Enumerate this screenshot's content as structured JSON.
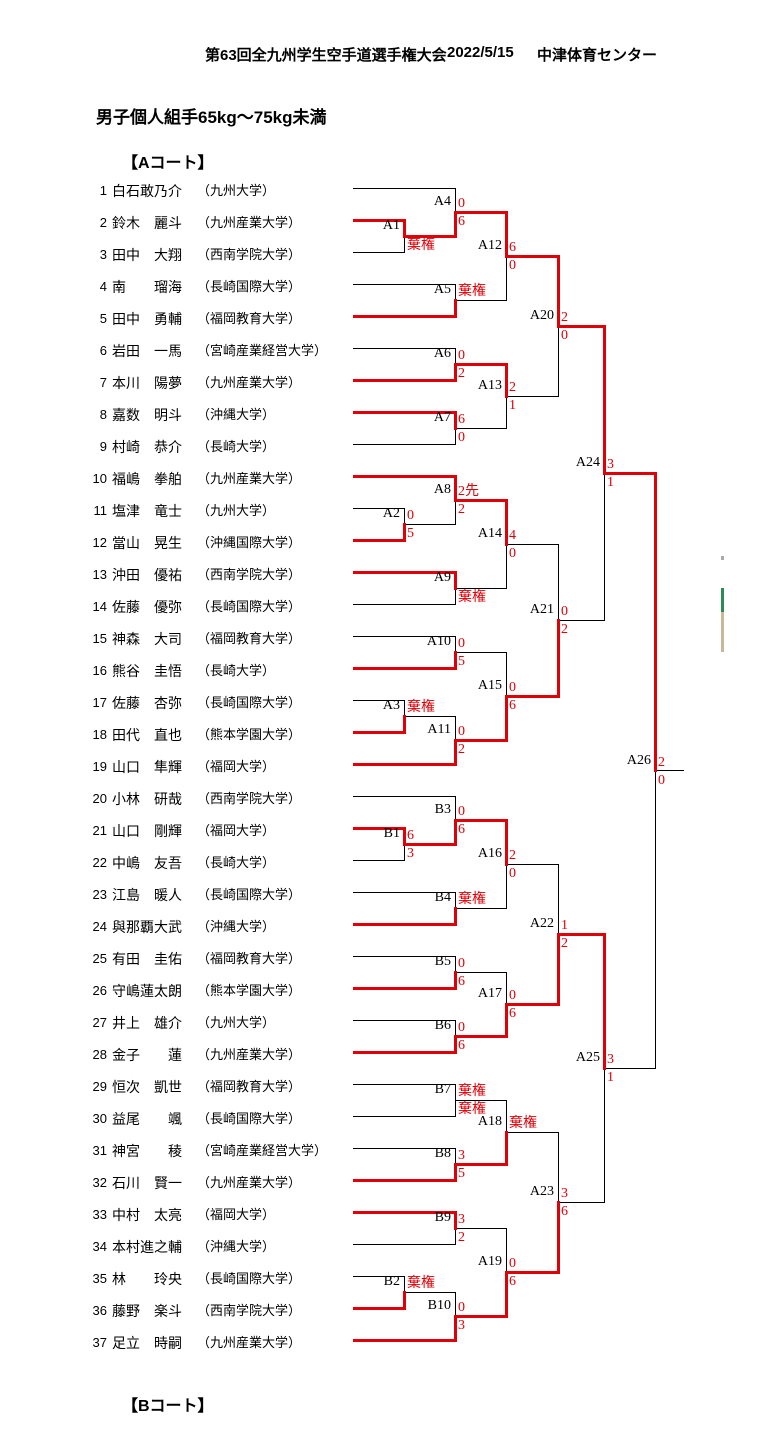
{
  "header": {
    "title": "第63回全九州学生空手道選手権大会",
    "date": "2022/5/15",
    "venue": "中津体育センター"
  },
  "event_title": "男子個人組手65kg～75kg未満",
  "court_a_label": "【Aコート】",
  "court_b_label": "【Bコート】",
  "colors": {
    "win_path": "#e00008",
    "loss_path": "#000000",
    "score_text": "#e00008",
    "label_text": "#000000",
    "artifact_gray": "#aaaaaa",
    "artifact_green": "#2e8b57",
    "artifact_tan": "#c9b999"
  },
  "bracket": {
    "forfeit_text": "棄権",
    "players": [
      {
        "num": 1,
        "name": "白石敢乃介",
        "univ": "（九州大学）"
      },
      {
        "num": 2,
        "name": "鈴木　麗斗",
        "univ": "（九州産業大学）"
      },
      {
        "num": 3,
        "name": "田中　大翔",
        "univ": "（西南学院大学）"
      },
      {
        "num": 4,
        "name": "南　　瑠海",
        "univ": "（長崎国際大学）"
      },
      {
        "num": 5,
        "name": "田中　勇輔",
        "univ": "（福岡教育大学）"
      },
      {
        "num": 6,
        "name": "岩田　一馬",
        "univ": "（宮崎産業経営大学）"
      },
      {
        "num": 7,
        "name": "本川　陽夢",
        "univ": "（九州産業大学）"
      },
      {
        "num": 8,
        "name": "嘉数　明斗",
        "univ": "（沖縄大学）"
      },
      {
        "num": 9,
        "name": "村崎　恭介",
        "univ": "（長崎大学）"
      },
      {
        "num": 10,
        "name": "福嶋　拳舶",
        "univ": "（九州産業大学）"
      },
      {
        "num": 11,
        "name": "塩津　竜士",
        "univ": "（九州大学）"
      },
      {
        "num": 12,
        "name": "當山　晃生",
        "univ": "（沖縄国際大学）"
      },
      {
        "num": 13,
        "name": "沖田　優祐",
        "univ": "（西南学院大学）"
      },
      {
        "num": 14,
        "name": "佐藤　優弥",
        "univ": "（長崎国際大学）"
      },
      {
        "num": 15,
        "name": "神森　大司",
        "univ": "（福岡教育大学）"
      },
      {
        "num": 16,
        "name": "熊谷　圭悟",
        "univ": "（長崎大学）"
      },
      {
        "num": 17,
        "name": "佐藤　杏弥",
        "univ": "（長崎国際大学）"
      },
      {
        "num": 18,
        "name": "田代　直也",
        "univ": "（熊本学園大学）"
      },
      {
        "num": 19,
        "name": "山口　隼輝",
        "univ": "（福岡大学）"
      },
      {
        "num": 20,
        "name": "小林　研哉",
        "univ": "（西南学院大学）"
      },
      {
        "num": 21,
        "name": "山口　剛輝",
        "univ": "（福岡大学）"
      },
      {
        "num": 22,
        "name": "中嶋　友吾",
        "univ": "（長崎大学）"
      },
      {
        "num": 23,
        "name": "江島　暖人",
        "univ": "（長崎国際大学）"
      },
      {
        "num": 24,
        "name": "與那覇大武",
        "univ": "（沖縄大学）"
      },
      {
        "num": 25,
        "name": "有田　圭佑",
        "univ": "（福岡教育大学）"
      },
      {
        "num": 26,
        "name": "守嶋蓮太朗",
        "univ": "（熊本学園大学）"
      },
      {
        "num": 27,
        "name": "井上　雄介",
        "univ": "（九州大学）"
      },
      {
        "num": 28,
        "name": "金子　　蓮",
        "univ": "（九州産業大学）"
      },
      {
        "num": 29,
        "name": "恒次　凱世",
        "univ": "（福岡教育大学）"
      },
      {
        "num": 30,
        "name": "益尾　　颯",
        "univ": "（長崎国際大学）"
      },
      {
        "num": 31,
        "name": "神宮　　稜",
        "univ": "（宮崎産業経営大学）"
      },
      {
        "num": 32,
        "name": "石川　賢一",
        "univ": "（九州産業大学）"
      },
      {
        "num": 33,
        "name": "中村　太亮",
        "univ": "（福岡大学）"
      },
      {
        "num": 34,
        "name": "本村進之輔",
        "univ": "（沖縄大学）"
      },
      {
        "num": 35,
        "name": "林　　玲央",
        "univ": "（長崎国際大学）"
      },
      {
        "num": 36,
        "name": "藤野　楽斗",
        "univ": "（西南学院大学）"
      },
      {
        "num": 37,
        "name": "足立　時嗣",
        "univ": "（九州産業大学）"
      }
    ],
    "matches": [
      {
        "id": "A1",
        "round": 0,
        "top": "P2",
        "bottom": "P3",
        "score_top": "",
        "score_bottom": "棄権",
        "winner": "top"
      },
      {
        "id": "A2",
        "round": 0,
        "top": "P11",
        "bottom": "P12",
        "score_top": "0",
        "score_bottom": "5",
        "winner": "bottom"
      },
      {
        "id": "A3",
        "round": 0,
        "top": "P17",
        "bottom": "P18",
        "score_top": "棄権",
        "score_bottom": "",
        "winner": "bottom"
      },
      {
        "id": "B1",
        "round": 0,
        "top": "P21",
        "bottom": "P22",
        "score_top": "6",
        "score_bottom": "3",
        "winner": "top"
      },
      {
        "id": "B2",
        "round": 0,
        "top": "P35",
        "bottom": "P36",
        "score_top": "棄権",
        "score_bottom": "",
        "winner": "bottom"
      },
      {
        "id": "A4",
        "round": 1,
        "top": "P1",
        "bottom": "A1",
        "score_top": "0",
        "score_bottom": "6",
        "winner": "bottom"
      },
      {
        "id": "A5",
        "round": 1,
        "top": "P4",
        "bottom": "P5",
        "score_top": "棄権",
        "score_bottom": "",
        "winner": "bottom"
      },
      {
        "id": "A6",
        "round": 1,
        "top": "P6",
        "bottom": "P7",
        "score_top": "0",
        "score_bottom": "2",
        "winner": "bottom"
      },
      {
        "id": "A7",
        "round": 1,
        "top": "P8",
        "bottom": "P9",
        "score_top": "6",
        "score_bottom": "0",
        "winner": "top"
      },
      {
        "id": "A8",
        "round": 1,
        "top": "P10",
        "bottom": "A2",
        "score_top": "2先",
        "score_bottom": "2",
        "winner": "top"
      },
      {
        "id": "A9",
        "round": 1,
        "top": "P13",
        "bottom": "P14",
        "score_top": "",
        "score_bottom": "棄権",
        "winner": "top"
      },
      {
        "id": "A10",
        "round": 1,
        "top": "P15",
        "bottom": "P16",
        "score_top": "0",
        "score_bottom": "5",
        "winner": "bottom"
      },
      {
        "id": "A11",
        "round": 1,
        "top": "A3",
        "bottom": "P19",
        "score_top": "0",
        "score_bottom": "2",
        "winner": "bottom"
      },
      {
        "id": "B3",
        "round": 1,
        "top": "P20",
        "bottom": "B1",
        "score_top": "0",
        "score_bottom": "6",
        "winner": "bottom"
      },
      {
        "id": "B4",
        "round": 1,
        "top": "P23",
        "bottom": "P24",
        "score_top": "棄権",
        "score_bottom": "",
        "winner": "bottom"
      },
      {
        "id": "B5",
        "round": 1,
        "top": "P25",
        "bottom": "P26",
        "score_top": "0",
        "score_bottom": "6",
        "winner": "bottom"
      },
      {
        "id": "B6",
        "round": 1,
        "top": "P27",
        "bottom": "P28",
        "score_top": "0",
        "score_bottom": "6",
        "winner": "bottom"
      },
      {
        "id": "B7",
        "round": 1,
        "top": "P29",
        "bottom": "P30",
        "score_top": "棄権",
        "score_bottom": "棄権",
        "winner": "none"
      },
      {
        "id": "B8",
        "round": 1,
        "top": "P31",
        "bottom": "P32",
        "score_top": "3",
        "score_bottom": "5",
        "winner": "bottom"
      },
      {
        "id": "B9",
        "round": 1,
        "top": "P33",
        "bottom": "P34",
        "score_top": "3",
        "score_bottom": "2",
        "winner": "top"
      },
      {
        "id": "B10",
        "round": 1,
        "top": "B2",
        "bottom": "P37",
        "score_top": "0",
        "score_bottom": "3",
        "winner": "bottom"
      },
      {
        "id": "A12",
        "round": 2,
        "top": "A4",
        "bottom": "A5",
        "score_top": "6",
        "score_bottom": "0",
        "winner": "top"
      },
      {
        "id": "A13",
        "round": 2,
        "top": "A6",
        "bottom": "A7",
        "score_top": "2",
        "score_bottom": "1",
        "winner": "top"
      },
      {
        "id": "A14",
        "round": 2,
        "top": "A8",
        "bottom": "A9",
        "score_top": "4",
        "score_bottom": "0",
        "winner": "top"
      },
      {
        "id": "A15",
        "round": 2,
        "top": "A10",
        "bottom": "A11",
        "score_top": "0",
        "score_bottom": "6",
        "winner": "bottom"
      },
      {
        "id": "A16",
        "round": 2,
        "top": "B3",
        "bottom": "B4",
        "score_top": "2",
        "score_bottom": "0",
        "winner": "top"
      },
      {
        "id": "A17",
        "round": 2,
        "top": "B5",
        "bottom": "B6",
        "score_top": "0",
        "score_bottom": "6",
        "winner": "bottom"
      },
      {
        "id": "A18",
        "round": 2,
        "top": "B7",
        "bottom": "B8",
        "score_top": "棄権",
        "score_bottom": "",
        "winner": "bottom"
      },
      {
        "id": "A19",
        "round": 2,
        "top": "B9",
        "bottom": "B10",
        "score_top": "0",
        "score_bottom": "6",
        "winner": "bottom"
      },
      {
        "id": "A20",
        "round": 3,
        "top": "A12",
        "bottom": "A13",
        "score_top": "2",
        "score_bottom": "0",
        "winner": "top"
      },
      {
        "id": "A21",
        "round": 3,
        "top": "A14",
        "bottom": "A15",
        "score_top": "0",
        "score_bottom": "2",
        "winner": "bottom"
      },
      {
        "id": "A22",
        "round": 3,
        "top": "A16",
        "bottom": "A17",
        "score_top": "1",
        "score_bottom": "2",
        "winner": "bottom"
      },
      {
        "id": "A23",
        "round": 3,
        "top": "A18",
        "bottom": "A19",
        "score_top": "3",
        "score_bottom": "6",
        "winner": "bottom"
      },
      {
        "id": "A24",
        "round": 4,
        "top": "A20",
        "bottom": "A21",
        "score_top": "3",
        "score_bottom": "1",
        "winner": "top"
      },
      {
        "id": "A25",
        "round": 4,
        "top": "A22",
        "bottom": "A23",
        "score_top": "3",
        "score_bottom": "1",
        "winner": "top"
      },
      {
        "id": "A26",
        "round": 5,
        "top": "A24",
        "bottom": "A25",
        "score_top": "2",
        "score_bottom": "0",
        "winner": "top",
        "final": true
      }
    ]
  }
}
